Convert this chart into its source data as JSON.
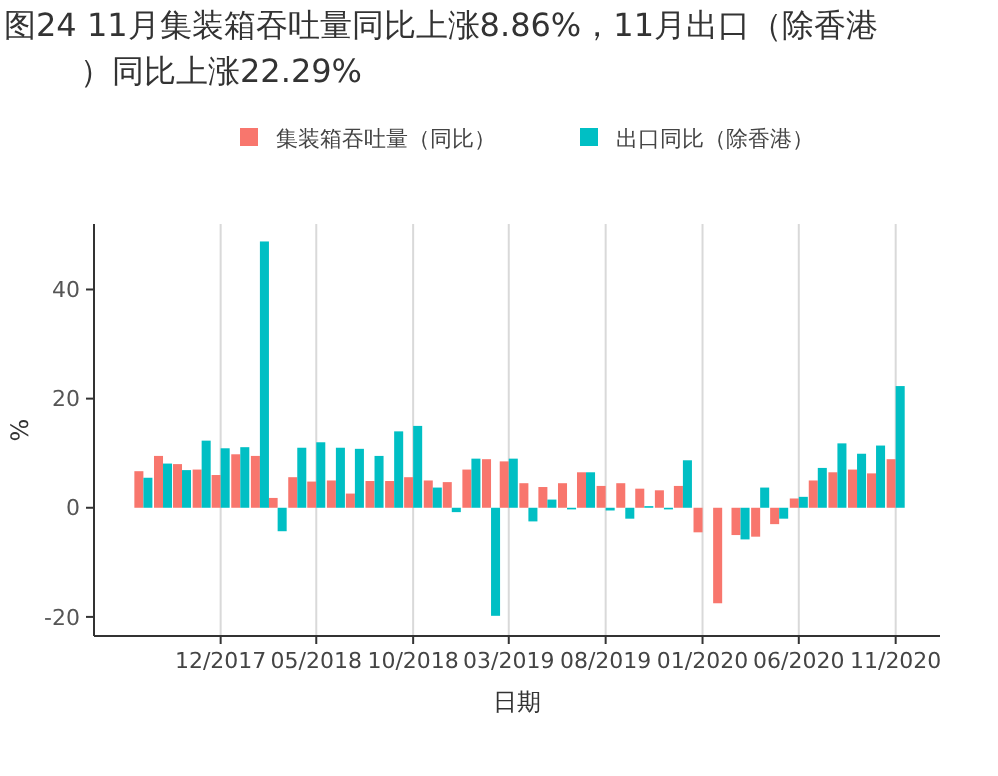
{
  "chart_data": {
    "type": "bar",
    "title": "图24 11月集装箱吞吐量同比上涨8.86%，11月出口（除香港）同比上涨22.29%",
    "xlabel": "日期",
    "ylabel": "%",
    "x": [
      "2017-08",
      "2017-09",
      "2017-10",
      "2017-11",
      "2017-12",
      "2018-01",
      "2018-02",
      "2018-03",
      "2018-04",
      "2018-05",
      "2018-06",
      "2018-07",
      "2018-08",
      "2018-09",
      "2018-10",
      "2018-11",
      "2018-12",
      "2019-01",
      "2019-02",
      "2019-03",
      "2019-04",
      "2019-05",
      "2019-06",
      "2019-07",
      "2019-08",
      "2019-09",
      "2019-10",
      "2019-11",
      "2019-12",
      "2020-01",
      "2020-02",
      "2020-03",
      "2020-04",
      "2020-05",
      "2020-06",
      "2020-07",
      "2020-08",
      "2020-09",
      "2020-10",
      "2020-11"
    ],
    "series": [
      {
        "name": "集装箱吞吐量（同比）",
        "color": "#f8766d",
        "values": [
          6.7,
          9.5,
          8,
          7,
          6,
          9.8,
          9.5,
          1.8,
          5.6,
          4.8,
          5,
          2.6,
          4.9,
          4.9,
          5.6,
          5,
          4.7,
          7,
          8.9,
          8.5,
          4.5,
          3.8,
          4.5,
          6.5,
          4,
          4.5,
          3.5,
          3.2,
          4,
          -4.5,
          -17.5,
          -5,
          -5.3,
          -3,
          1.7,
          5,
          6.5,
          7,
          6.3,
          8.9
        ]
      },
      {
        "name": "出口同比（除香港）",
        "color": "#00bfc4",
        "values": [
          5.5,
          8.1,
          6.9,
          12.3,
          10.9,
          11.1,
          48.8,
          -4.3,
          11,
          12,
          11,
          10.8,
          9.5,
          14,
          15,
          3.7,
          -0.8,
          9,
          -19.8,
          9,
          -2.5,
          1.5,
          -0.3,
          6.5,
          -0.5,
          -2,
          0.3,
          -0.3,
          8.7,
          null,
          null,
          -5.8,
          3.7,
          -2,
          2,
          7.3,
          11.8,
          9.9,
          11.4,
          22.3
        ]
      }
    ],
    "xlim": [
      "2017-05-15",
      "2021-01-10"
    ],
    "xticks": [
      {
        "value": "2017-12",
        "label": "12/2017"
      },
      {
        "value": "2018-05",
        "label": "05/2018"
      },
      {
        "value": "2018-10",
        "label": "10/2018"
      },
      {
        "value": "2019-03",
        "label": "03/2019"
      },
      {
        "value": "2019-08",
        "label": "08/2019"
      },
      {
        "value": "2020-01",
        "label": "01/2020"
      },
      {
        "value": "2020-06",
        "label": "06/2020"
      },
      {
        "value": "2020-11",
        "label": "11/2020"
      }
    ],
    "ylim": [
      -23.5,
      52
    ],
    "yticks": [
      -20,
      0,
      20,
      40
    ],
    "grid": "x",
    "legend": "top"
  }
}
